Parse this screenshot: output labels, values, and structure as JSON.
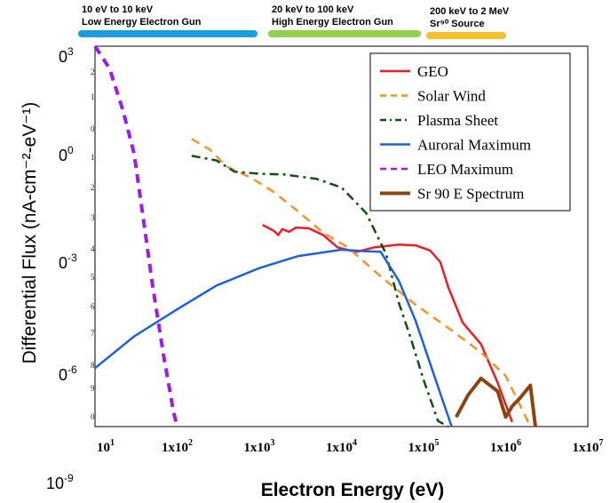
{
  "energy_ranges": [
    {
      "line1": "10 eV to 10 keV",
      "line2": "Low Energy Electron Gun",
      "color": "#1b9be0"
    },
    {
      "line1": "20 keV to 100 keV",
      "line2": "High Energy Electron Gun",
      "color": "#92d050"
    },
    {
      "line1": "200 keV to 2 MeV",
      "line2": "Sr⁹⁰ Source",
      "color": "#f2c12e"
    }
  ],
  "y_major_labels": [
    "0",
    "0",
    "0",
    "0",
    "10"
  ],
  "y_major_exponents": [
    "3",
    "0",
    "-3",
    "-6",
    "-9"
  ],
  "y_minor_labels": [
    "2",
    "1",
    "0",
    "1",
    "2",
    "3",
    "4",
    "5",
    "6",
    "7",
    "8",
    "9",
    "0"
  ],
  "chart_data": {
    "type": "line",
    "xlabel": "Electron Energy (eV)",
    "ylabel": "Differential Flux (nA-cm⁻²-eV⁻¹)",
    "x_scale": "log",
    "y_scale": "log",
    "xlim": [
      10,
      10000000
    ],
    "ylim": [
      1e-09,
      1000
    ],
    "x_tick_labels": [
      "10",
      "1x10",
      "1x10",
      "1x10",
      "1x10",
      "1x10",
      "1x10"
    ],
    "x_tick_exponents": [
      "1",
      "2",
      "3",
      "4",
      "5",
      "6",
      "7"
    ],
    "grid": false,
    "legend_position": "top-right",
    "series": [
      {
        "name": "GEO",
        "color": "#ee1c25",
        "style": "solid",
        "x": [
          1100,
          1500,
          1700,
          1900,
          2300,
          2800,
          4000,
          6000,
          9000,
          15000,
          25000,
          50000,
          80000,
          120000,
          160000,
          200000,
          300000,
          500000,
          800000,
          1200000
        ],
        "y": [
          0.0023,
          0.0015,
          0.0011,
          0.0017,
          0.0014,
          0.0019,
          0.0018,
          0.0011,
          0.00045,
          0.00032,
          0.00045,
          0.00055,
          0.00052,
          0.00036,
          0.000155,
          2.5e-05,
          1.9e-06,
          4e-07,
          2.4e-08,
          1.4e-09
        ]
      },
      {
        "name": "Solar Wind",
        "color": "#f7922b",
        "style": "dashed",
        "x": [
          150,
          250,
          400,
          800,
          1500,
          3000,
          6000,
          12000,
          30000,
          80000,
          200000,
          500000,
          1000000,
          2000000
        ],
        "y": [
          1.2,
          0.55,
          0.16,
          0.07,
          0.025,
          0.006,
          0.0013,
          0.00045,
          5.5e-05,
          7e-06,
          1.3e-06,
          2.2e-07,
          4e-08,
          1e-09
        ]
      },
      {
        "name": "Plasma Sheet",
        "color": "#124d12",
        "style": "dashdot",
        "x": [
          150,
          300,
          500,
          1000,
          2000,
          5000,
          10000,
          20000,
          35000,
          50000,
          70000,
          100000,
          150000,
          200000
        ],
        "y": [
          0.35,
          0.25,
          0.11,
          0.095,
          0.09,
          0.065,
          0.035,
          0.0055,
          0.00028,
          8e-06,
          6e-07,
          3e-08,
          1.5e-09,
          1e-09
        ]
      },
      {
        "name": "Auroral Maximum",
        "color": "#1e5fe0",
        "style": "solid",
        "x": [
          10,
          30,
          100,
          300,
          1000,
          3000,
          10000,
          20000,
          30000,
          50000,
          80000,
          120000,
          170000,
          220000
        ],
        "y": [
          7e-08,
          7e-07,
          5e-06,
          2.8e-05,
          0.0001,
          0.00024,
          0.00038,
          0.00034,
          0.00033,
          4e-05,
          2.2e-06,
          1e-07,
          7e-09,
          1e-09
        ]
      },
      {
        "name": "LEO Maximum",
        "color": "#9b1de6",
        "style": "dashed",
        "x": [
          10,
          15,
          22,
          30,
          40,
          50,
          60,
          70,
          80,
          90,
          100
        ],
        "y": [
          1000,
          200,
          9,
          0.4,
          0.002,
          3e-05,
          1.5e-06,
          1.2e-07,
          1.8e-08,
          3e-09,
          1e-09
        ]
      },
      {
        "name": "Sr 90 E Spectrum",
        "color": "#8b4513",
        "style": "solid-thick",
        "x": [
          250000,
          350000,
          500000,
          800000,
          1000000,
          1200000,
          1500000,
          2000000,
          2300000
        ],
        "y": [
          2e-09,
          1e-08,
          3.3e-08,
          1.3e-08,
          2e-09,
          4.4e-09,
          8e-09,
          2e-08,
          1e-09
        ]
      }
    ]
  }
}
